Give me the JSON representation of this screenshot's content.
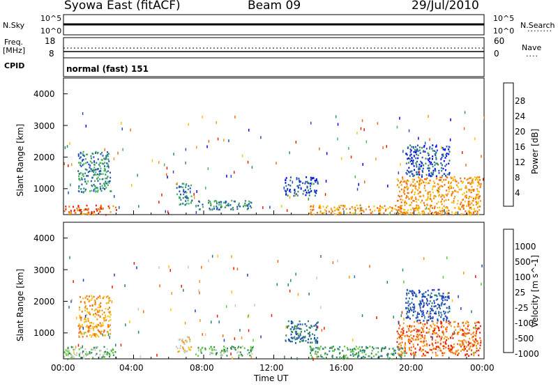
{
  "header": {
    "station": "Syowa East (fitACF)",
    "beam": "Beam 09",
    "date": "29/Jul/2010"
  },
  "params_panel": {
    "nsky_label": "N.Sky",
    "nsky_ticks": [
      "10^5",
      "10^0"
    ],
    "nsearch_label": "N.Search",
    "nsearch_ticks": [
      "10^5",
      "10^0"
    ],
    "freq_label": "Freq.",
    "freq_unit": "[MHz]",
    "freq_ticks": [
      "18",
      "8"
    ],
    "nave_label": "Nave",
    "nave_ticks": [
      "60",
      "0"
    ],
    "cpid_label": "CPID",
    "cpid_value": "normal (fast) 151"
  },
  "chart_data": [
    {
      "type": "heatmap",
      "name": "power",
      "ylabel": "Slant Range [km]",
      "xlabel": "Time UT",
      "y_ticks": [
        "1000",
        "2000",
        "3000",
        "4000"
      ],
      "ylim": [
        180,
        4500
      ],
      "x_ticks": [
        "00:00",
        "04:00",
        "08:00",
        "12:00",
        "16:00",
        "20:00",
        "00:00"
      ],
      "colorbar": {
        "label": "Power [dB]",
        "ticks": [
          "4",
          "8",
          "12",
          "16",
          "20",
          "24",
          "28"
        ],
        "colors": [
          "#0000ff",
          "#234fbd",
          "#2e8a6b",
          "#46b85b",
          "#f4c412",
          "#f59a12",
          "#f26a0f",
          "#e81b0b"
        ]
      },
      "patches": [
        {
          "t0": 0.0,
          "t1": 3.0,
          "r0": 200,
          "r1": 500,
          "level": 6
        },
        {
          "t0": 0.8,
          "t1": 2.7,
          "r0": 900,
          "r1": 2200,
          "level": 2
        },
        {
          "t0": 6.4,
          "t1": 7.3,
          "r0": 500,
          "r1": 1200,
          "level": 2
        },
        {
          "t0": 7.5,
          "t1": 10.8,
          "r0": 350,
          "r1": 650,
          "level": 2
        },
        {
          "t0": 12.6,
          "t1": 14.5,
          "r0": 800,
          "r1": 1400,
          "level": 1
        },
        {
          "t0": 14.0,
          "t1": 19.5,
          "r0": 200,
          "r1": 500,
          "level": 5
        },
        {
          "t0": 19.0,
          "t1": 23.8,
          "r0": 200,
          "r1": 1400,
          "level": 5
        },
        {
          "t0": 19.5,
          "t1": 22.0,
          "r0": 1400,
          "r1": 2400,
          "level": 1
        }
      ]
    },
    {
      "type": "heatmap",
      "name": "velocity",
      "ylabel": "Slant Range [km]",
      "xlabel": "Time UT",
      "y_ticks": [
        "1000",
        "2000",
        "3000",
        "4000"
      ],
      "ylim": [
        180,
        4500
      ],
      "x_ticks": [
        "00:00",
        "04:00",
        "08:00",
        "12:00",
        "16:00",
        "20:00",
        "00:00"
      ],
      "colorbar": {
        "label": "Velocity [m s^-1]",
        "ticks": [
          "1000",
          "500",
          "100",
          "25",
          "-25",
          "-100",
          "-500",
          "-1000"
        ],
        "colors": [
          "#1c3fbf",
          "#2a7a8f",
          "#2d8a4e",
          "#5fc83d",
          "#c8c8c8",
          "#f5c41a",
          "#f59a12",
          "#f26a0f",
          "#e81b0b"
        ]
      },
      "patches": [
        {
          "t0": 0.0,
          "t1": 3.0,
          "r0": 200,
          "r1": 600,
          "level": 3
        },
        {
          "t0": 0.8,
          "t1": 2.7,
          "r0": 900,
          "r1": 2200,
          "level": 6
        },
        {
          "t0": 6.4,
          "t1": 7.3,
          "r0": 400,
          "r1": 900,
          "level": 5
        },
        {
          "t0": 7.5,
          "t1": 10.8,
          "r0": 300,
          "r1": 600,
          "level": 3
        },
        {
          "t0": 12.6,
          "t1": 14.5,
          "r0": 700,
          "r1": 1400,
          "level": 1
        },
        {
          "t0": 14.0,
          "t1": 19.5,
          "r0": 200,
          "r1": 600,
          "level": 2
        },
        {
          "t0": 19.0,
          "t1": 23.8,
          "r0": 300,
          "r1": 1400,
          "level": 7
        },
        {
          "t0": 19.5,
          "t1": 22.0,
          "r0": 1400,
          "r1": 2400,
          "level": 0
        }
      ]
    }
  ]
}
